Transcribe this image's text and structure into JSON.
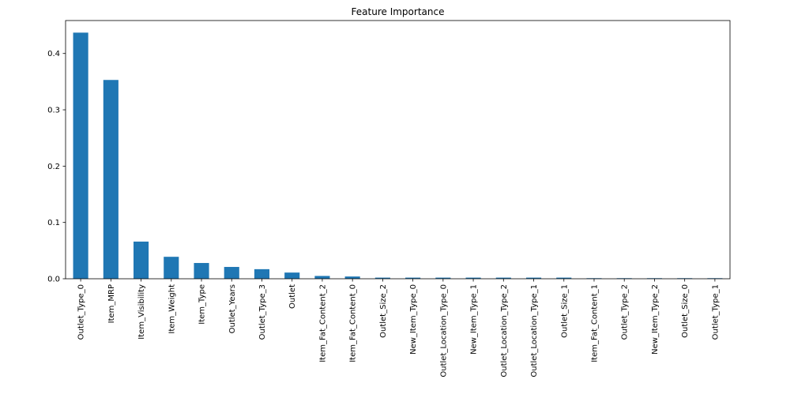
{
  "chart_data": {
    "type": "bar",
    "title": "Feature Importance",
    "xlabel": "",
    "ylabel": "",
    "categories": [
      "Outlet_Type_0",
      "Item_MRP",
      "Item_Visibility",
      "Item_Weight",
      "Item_Type",
      "Outlet_Years",
      "Outlet_Type_3",
      "Outlet",
      "Item_Fat_Content_2",
      "Item_Fat_Content_0",
      "Outlet_Size_2",
      "New_Item_Type_0",
      "Outlet_Location_Type_0",
      "New_Item_Type_1",
      "Outlet_Location_Type_2",
      "Outlet_Location_Type_1",
      "Outlet_Size_1",
      "Item_Fat_Content_1",
      "Outlet_Type_2",
      "New_Item_Type_2",
      "Outlet_Size_0",
      "Outlet_Type_1"
    ],
    "values": [
      0.437,
      0.353,
      0.066,
      0.039,
      0.028,
      0.021,
      0.017,
      0.011,
      0.005,
      0.004,
      0.002,
      0.002,
      0.002,
      0.002,
      0.002,
      0.002,
      0.002,
      0.001,
      0.001,
      0.001,
      0.001,
      0.001
    ],
    "yticks": [
      "0.0",
      "0.1",
      "0.2",
      "0.3",
      "0.4"
    ],
    "ylim": [
      0,
      0.4585
    ],
    "grid": false,
    "bar_color": "#1f77b4"
  }
}
